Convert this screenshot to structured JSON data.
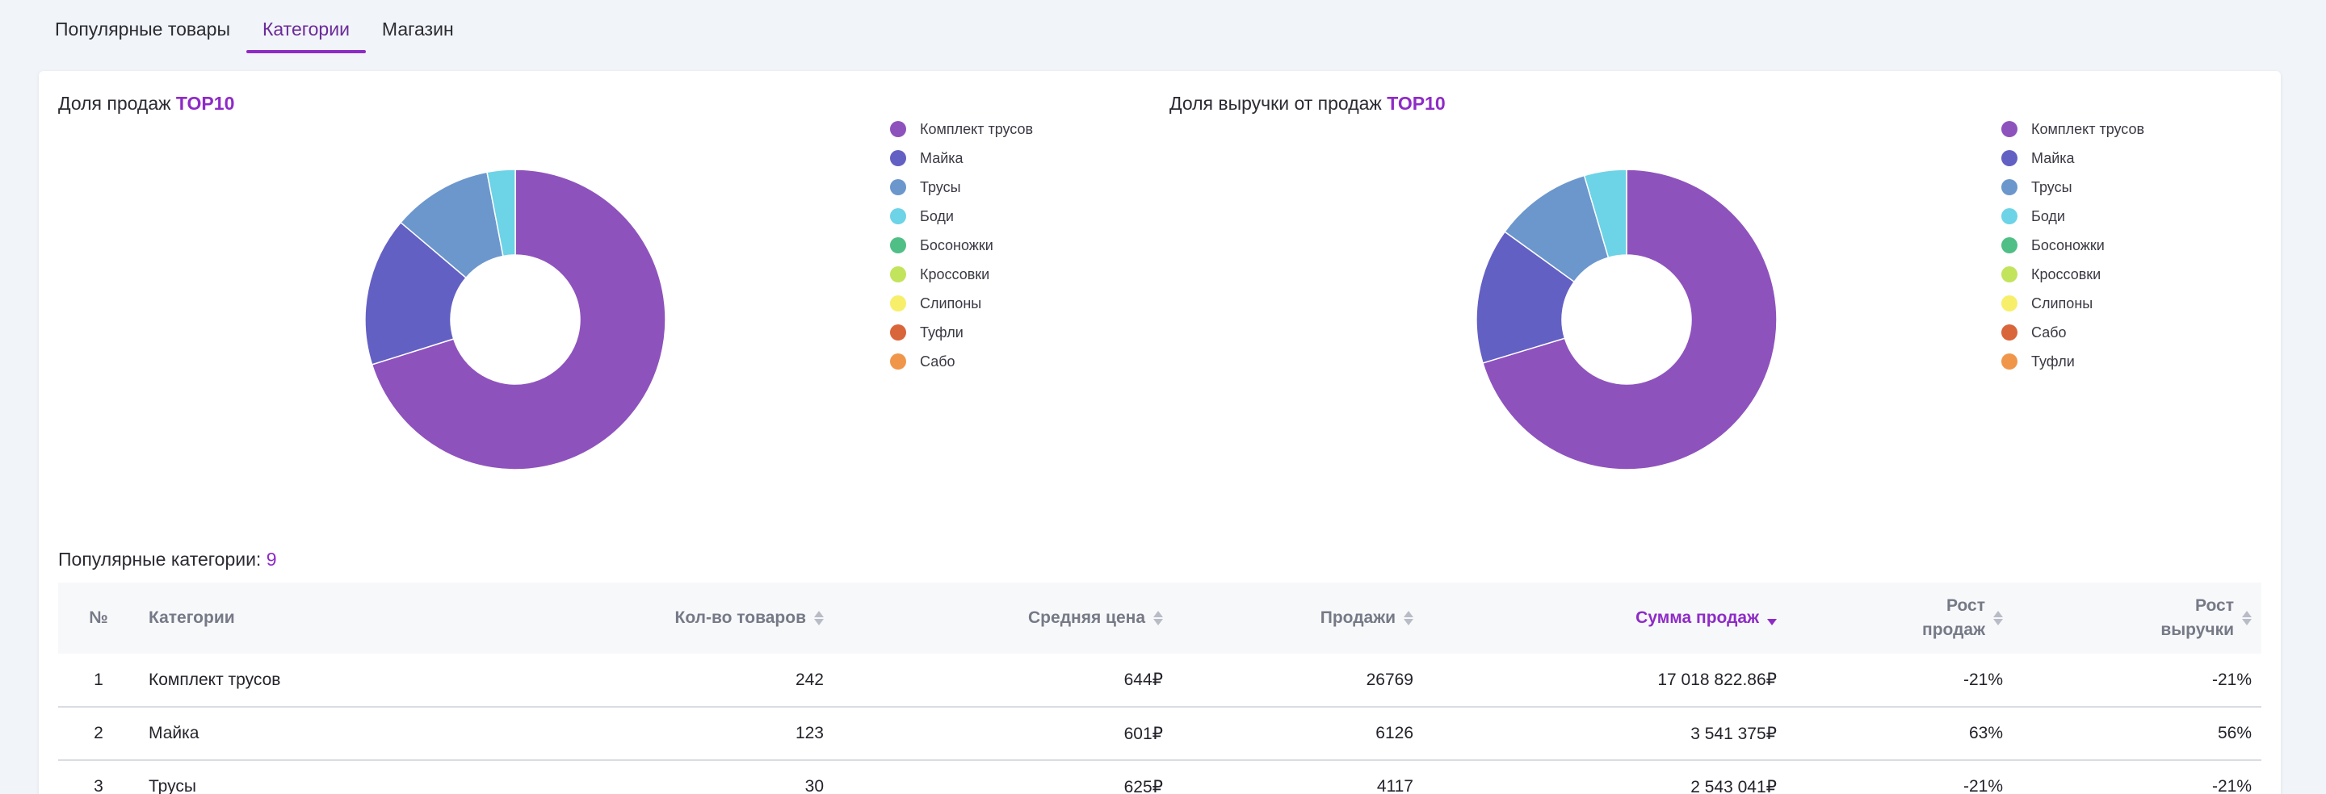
{
  "tabs": [
    {
      "label": "Популярные товары",
      "active": false
    },
    {
      "label": "Категории",
      "active": true
    },
    {
      "label": "Магазин",
      "active": false
    }
  ],
  "charts": [
    {
      "title_prefix": "Доля продаж ",
      "title_accent": "TOP10",
      "chart_data": {
        "type": "pie",
        "categories": [
          "Комплект трусов",
          "Майка",
          "Трусы",
          "Боди",
          "Босоножки",
          "Кроссовки",
          "Слипоны",
          "Туфли",
          "Сабо"
        ],
        "values": [
          26769,
          6126,
          4117,
          1150,
          0,
          0,
          0,
          0,
          0
        ],
        "colors": [
          "#8e52bd",
          "#6360c4",
          "#6b97cd",
          "#6dd3e6",
          "#4fbf86",
          "#c2e45c",
          "#f7ef6a",
          "#d9653a",
          "#f0964a"
        ]
      }
    },
    {
      "title_prefix": "Доля выручки от продаж ",
      "title_accent": "TOP10",
      "chart_data": {
        "type": "pie",
        "categories": [
          "Комплект трусов",
          "Майка",
          "Трусы",
          "Боди",
          "Босоножки",
          "Кроссовки",
          "Слипоны",
          "Сабо",
          "Туфли"
        ],
        "values": [
          17018822.86,
          3541375,
          2543041,
          1100000,
          0,
          0,
          0,
          0,
          0
        ],
        "colors": [
          "#8e52bd",
          "#6360c4",
          "#6b97cd",
          "#6dd3e6",
          "#4fbf86",
          "#c2e45c",
          "#f7ef6a",
          "#d9653a",
          "#f0964a"
        ]
      }
    }
  ],
  "table_section": {
    "title": "Популярные категории: ",
    "count": "9"
  },
  "table": {
    "headers": {
      "num": "№",
      "category": "Категории",
      "qty": "Кол-во товаров",
      "avg_price": "Средняя цена",
      "sales": "Продажи",
      "sales_sum": "Сумма продаж",
      "sales_growth_1": "Рост",
      "sales_growth_2": "продаж",
      "revenue_growth_1": "Рост",
      "revenue_growth_2": "выручки"
    },
    "rows": [
      {
        "num": "1",
        "category": "Комплект трусов",
        "qty": "242",
        "avg_price": "644₽",
        "sales": "26769",
        "sales_sum": "17 018 822.86₽",
        "sales_growth": "-21%",
        "revenue_growth": "-21%"
      },
      {
        "num": "2",
        "category": "Майка",
        "qty": "123",
        "avg_price": "601₽",
        "sales": "6126",
        "sales_sum": "3 541 375₽",
        "sales_growth": "63%",
        "revenue_growth": "56%"
      },
      {
        "num": "3",
        "category": "Трусы",
        "qty": "30",
        "avg_price": "625₽",
        "sales": "4117",
        "sales_sum": "2 543 041₽",
        "sales_growth": "-21%",
        "revenue_growth": "-21%"
      }
    ]
  }
}
